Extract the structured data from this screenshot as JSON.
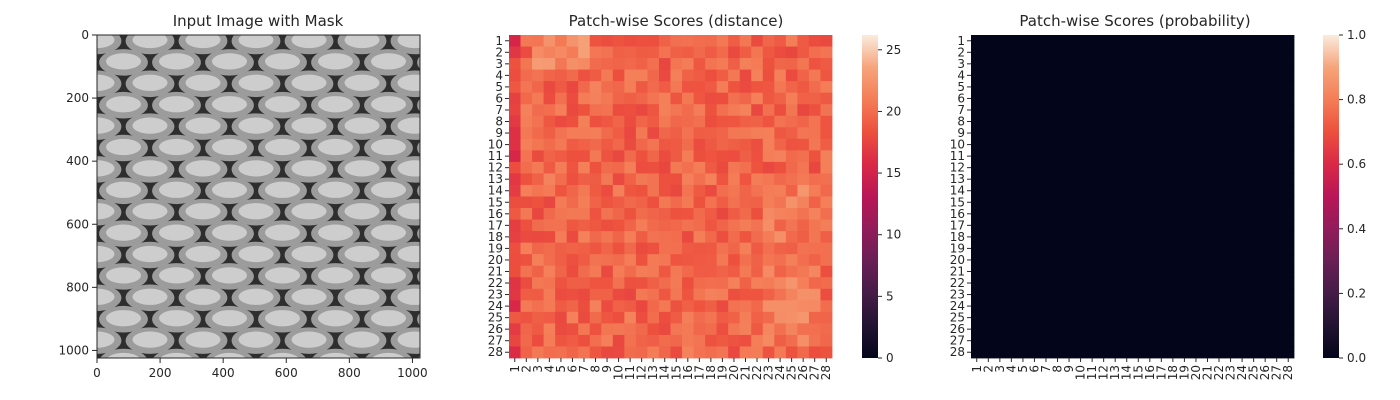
{
  "chart_data": [
    {
      "type": "image",
      "title": "Input Image with Mask",
      "xlim": [
        0,
        1024
      ],
      "ylim": [
        1024,
        0
      ],
      "xticks": [
        0,
        200,
        400,
        600,
        800,
        1000
      ],
      "yticks": [
        0,
        200,
        400,
        600,
        800,
        1000
      ],
      "image_description_pattern": "honeycomb",
      "image_colors": {
        "dark": "#2e2e2e",
        "light": "#cdcdcd"
      }
    },
    {
      "type": "heatmap",
      "title": "Patch-wise Scores (distance)",
      "rows": 28,
      "cols": 28,
      "row_labels": [
        "1",
        "2",
        "3",
        "4",
        "5",
        "6",
        "7",
        "8",
        "9",
        "10",
        "11",
        "12",
        "13",
        "14",
        "15",
        "16",
        "17",
        "18",
        "19",
        "20",
        "21",
        "22",
        "23",
        "24",
        "25",
        "26",
        "27",
        "28"
      ],
      "col_labels": [
        "1",
        "2",
        "3",
        "4",
        "5",
        "6",
        "7",
        "8",
        "9",
        "10",
        "11",
        "12",
        "13",
        "14",
        "15",
        "16",
        "17",
        "18",
        "19",
        "20",
        "21",
        "22",
        "23",
        "24",
        "25",
        "26",
        "27",
        "28"
      ],
      "colorbar": {
        "vmin": 0,
        "vmax": 26.2,
        "ticks": [
          0,
          5,
          10,
          15,
          20,
          25
        ],
        "colormap": "rocket"
      },
      "value_range": [
        15,
        26
      ]
    },
    {
      "type": "heatmap",
      "title": "Patch-wise Scores (probability)",
      "rows": 28,
      "cols": 28,
      "row_labels": [
        "1",
        "2",
        "3",
        "4",
        "5",
        "6",
        "7",
        "8",
        "9",
        "10",
        "11",
        "12",
        "13",
        "14",
        "15",
        "16",
        "17",
        "18",
        "19",
        "20",
        "21",
        "22",
        "23",
        "24",
        "25",
        "26",
        "27",
        "28"
      ],
      "col_labels": [
        "1",
        "2",
        "3",
        "4",
        "5",
        "6",
        "7",
        "8",
        "9",
        "10",
        "11",
        "12",
        "13",
        "14",
        "15",
        "16",
        "17",
        "18",
        "19",
        "20",
        "21",
        "22",
        "23",
        "24",
        "25",
        "26",
        "27",
        "28"
      ],
      "colorbar": {
        "vmin": 0,
        "vmax": 1.0,
        "ticks": [
          "0.0",
          "0.2",
          "0.4",
          "0.6",
          "0.8",
          "1.0"
        ],
        "colormap": "rocket"
      },
      "value_all": 0.0
    }
  ]
}
